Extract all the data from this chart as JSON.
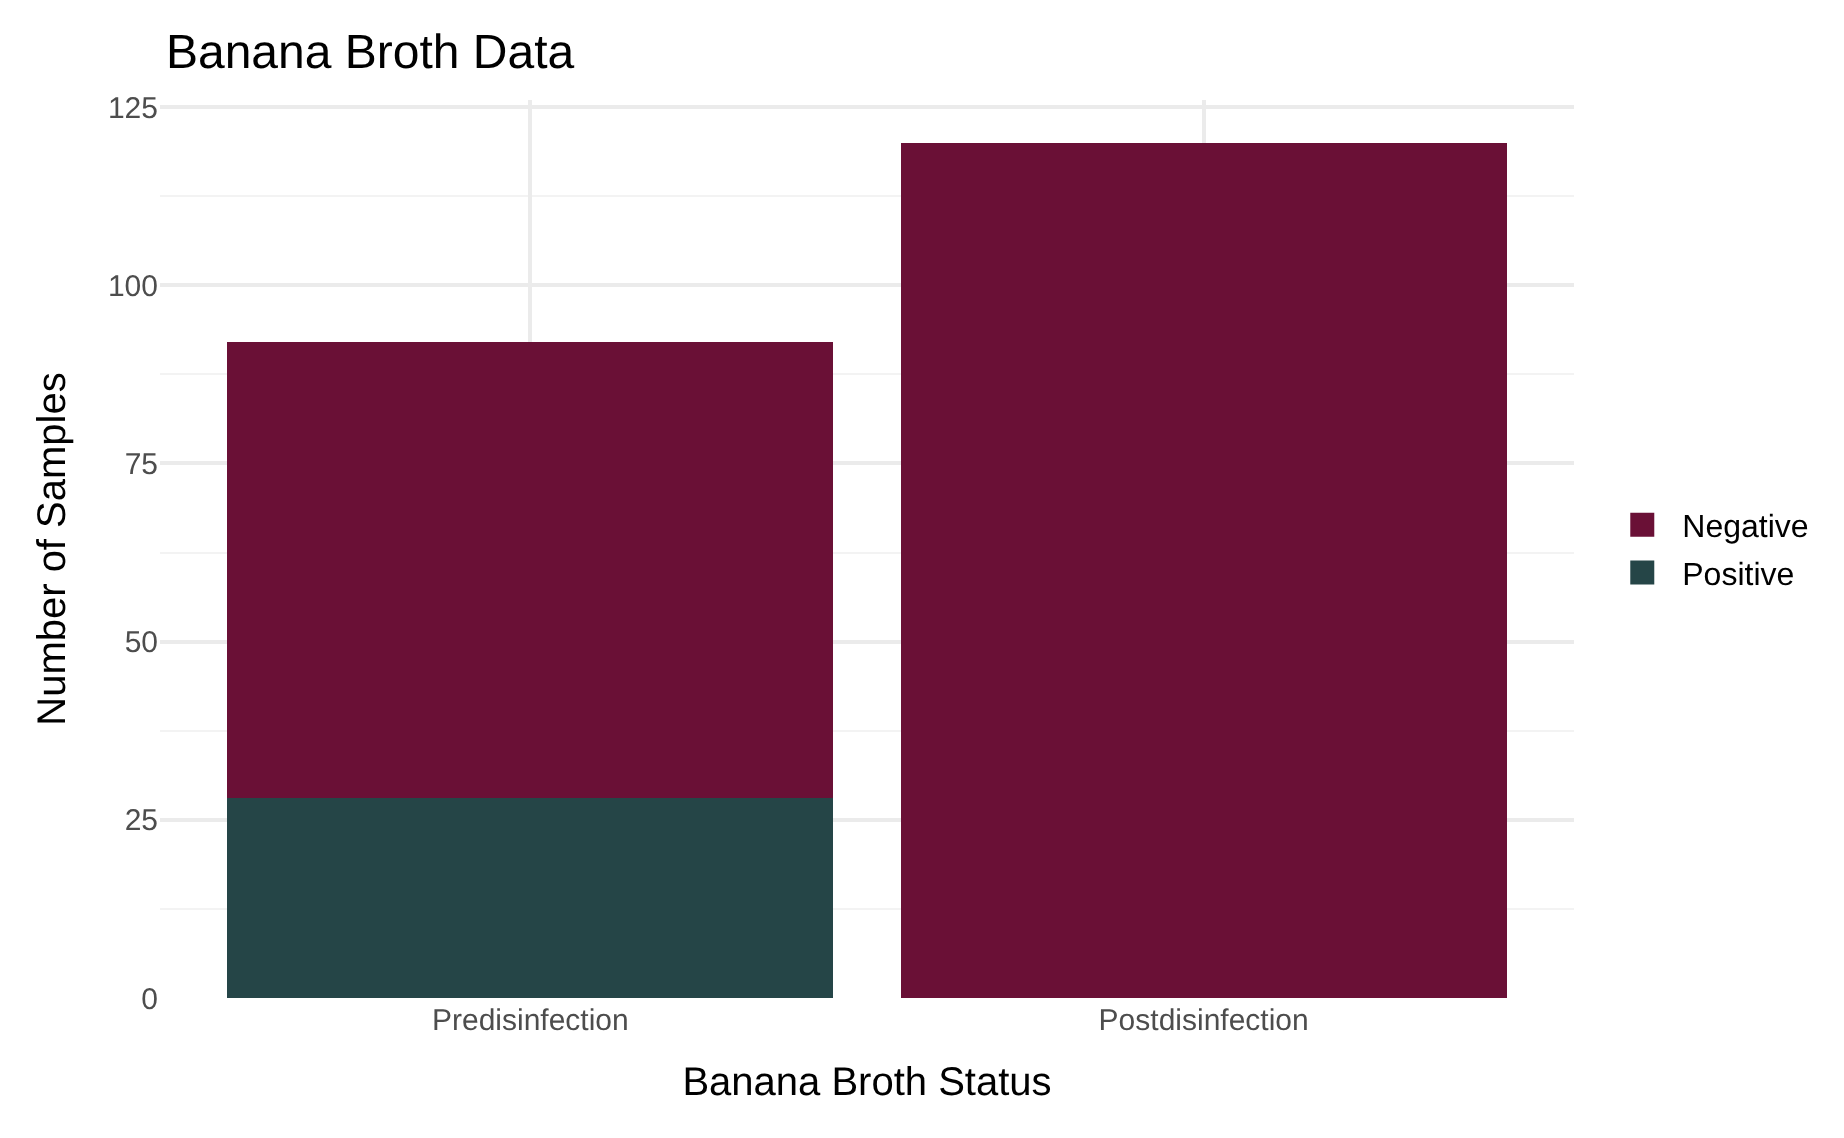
{
  "chart_data": {
    "type": "bar",
    "title": "Banana Broth Data",
    "xlabel": "Banana Broth Status",
    "ylabel": "Number of Samples",
    "categories": [
      "Predisinfection",
      "Postdisinfection"
    ],
    "series": [
      {
        "name": "Positive",
        "color": "#254547",
        "values": [
          28,
          0
        ]
      },
      {
        "name": "Negative",
        "color": "#6a1036",
        "values": [
          64,
          120
        ]
      }
    ],
    "stacked": true,
    "ylim": [
      0,
      126
    ],
    "yticks": [
      0,
      25,
      50,
      75,
      100,
      125
    ],
    "grid": true,
    "legend": "right"
  }
}
